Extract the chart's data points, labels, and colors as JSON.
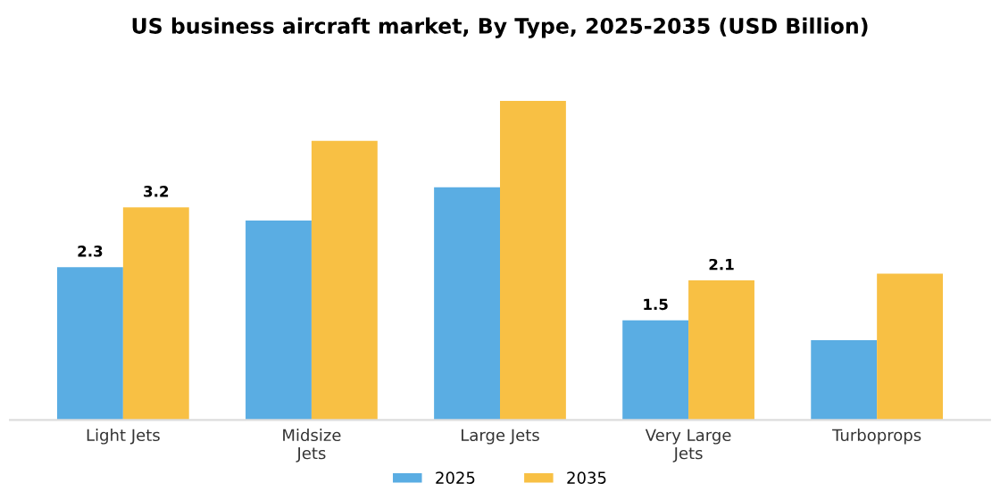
{
  "chart_data": {
    "type": "bar",
    "title": "US business aircraft market, By Type, 2025-2035 (USD Billion)",
    "categories": [
      "Light Jets",
      "Midsize\nJets",
      "Large Jets",
      "Very Large\nJets",
      "Turboprops"
    ],
    "series": [
      {
        "name": "2025",
        "color": "#5aade3",
        "values": [
          2.3,
          3.0,
          3.5,
          1.5,
          1.2
        ],
        "value_labels": [
          "2.3",
          null,
          null,
          "1.5",
          null
        ]
      },
      {
        "name": "2035",
        "color": "#f8c044",
        "values": [
          3.2,
          4.2,
          4.8,
          2.1,
          2.2
        ],
        "value_labels": [
          "3.2",
          null,
          null,
          "2.1",
          null
        ]
      }
    ],
    "legend": "bottom",
    "grid": false
  }
}
